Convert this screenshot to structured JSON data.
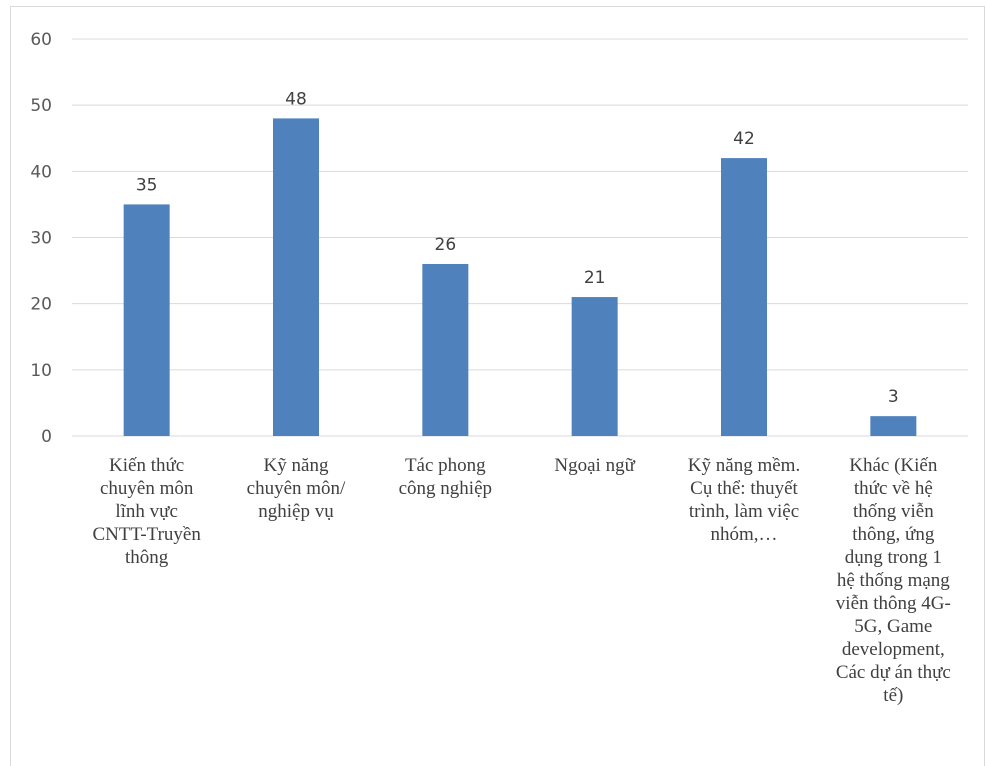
{
  "chart_data": {
    "type": "bar",
    "categories": [
      "Kiến thức chuyên môn lĩnh vực CNTT-Truyền thông",
      "Kỹ năng chuyên môn/ nghiệp vụ",
      "Tác phong công nghiệp",
      "Ngoại ngữ",
      "Kỹ năng mềm. Cụ thể: thuyết trình, làm việc nhóm,…",
      "Khác (Kiến thức về hệ thống viễn thông, ứng dụng trong 1 hệ thống mạng viễn thông 4G-5G, Game development, Các dự án thực tế)"
    ],
    "category_lines": [
      [
        "Kiến thức",
        "chuyên môn",
        "lĩnh vực",
        "CNTT-Truyền",
        "thông"
      ],
      [
        "Kỹ năng",
        "chuyên môn/",
        "nghiệp vụ"
      ],
      [
        "Tác phong",
        "công nghiệp"
      ],
      [
        "Ngoại ngữ"
      ],
      [
        "Kỹ năng mềm.",
        "Cụ thể: thuyết",
        "trình, làm việc",
        "nhóm,…"
      ],
      [
        "Khác (Kiến",
        "thức về hệ",
        "thống viễn",
        "thông, ứng",
        "dụng trong 1",
        "hệ thống mạng",
        "viễn thông 4G-",
        "5G, Game",
        "development,",
        "Các dự án thực",
        "tế)"
      ]
    ],
    "values": [
      35,
      48,
      26,
      21,
      42,
      3
    ],
    "data_labels": [
      "35",
      "48",
      "26",
      "21",
      "42",
      "3"
    ],
    "ylim": [
      0,
      60
    ],
    "yticks": [
      "0",
      "10",
      "20",
      "30",
      "40",
      "50",
      "60"
    ],
    "grid": true,
    "legend": "none",
    "bar_color": "#4f81bd",
    "grid_color": "#d9d9d9",
    "title": "",
    "xlabel": "",
    "ylabel": ""
  }
}
